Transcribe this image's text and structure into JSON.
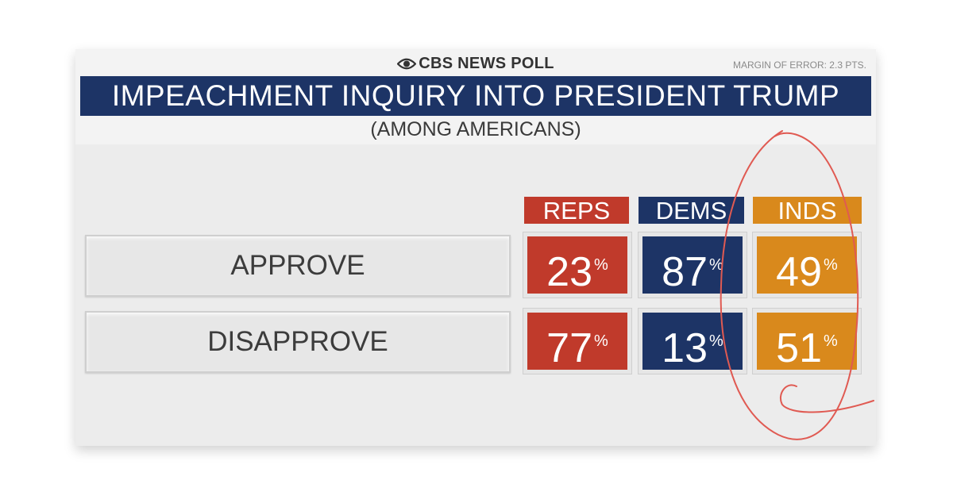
{
  "header": {
    "brand": "CBS NEWS POLL",
    "margin_of_error": "MARGIN OF ERROR: 2.3 PTS.",
    "title": "IMPEACHMENT INQUIRY INTO PRESIDENT TRUMP",
    "subtitle": "(AMONG AMERICANS)"
  },
  "chart_data": {
    "type": "table",
    "title": "IMPEACHMENT INQUIRY INTO PRESIDENT TRUMP",
    "subtitle": "(AMONG AMERICANS)",
    "columns": [
      "REPS",
      "DEMS",
      "INDS"
    ],
    "rows": [
      {
        "label": "APPROVE",
        "values": [
          23,
          87,
          49
        ]
      },
      {
        "label": "DISAPPROVE",
        "values": [
          77,
          13,
          51
        ]
      }
    ],
    "unit": "%"
  },
  "colors": {
    "reps": "#c03a2b",
    "dems": "#1d3466",
    "inds": "#d9891c",
    "title_bar": "#1d3466",
    "annotation": "#e05a52"
  },
  "annotation": "red hand-drawn circle around the INDS column"
}
